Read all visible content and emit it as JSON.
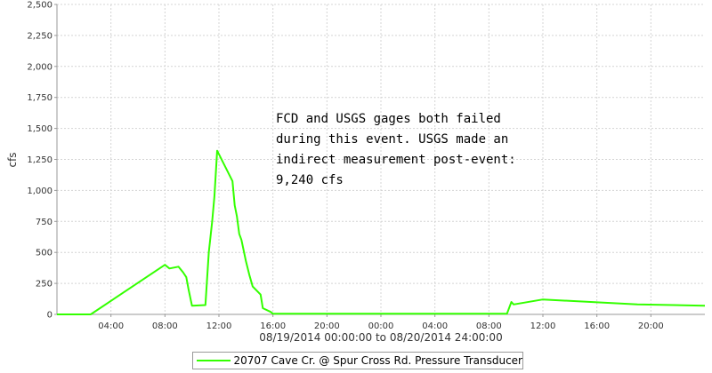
{
  "chart_data": {
    "type": "line",
    "ylabel": "cfs",
    "xlabel": "08/19/2014 00:00:00 to 08/20/2014 24:00:00",
    "xlim": [
      "08/19/2014 00:00",
      "08/20/2014 24:00"
    ],
    "ylim": [
      0,
      2500
    ],
    "yticks": [
      0,
      250,
      500,
      750,
      1000,
      1250,
      1500,
      1750,
      2000,
      2250,
      2500
    ],
    "ytick_labels": [
      "0",
      "250",
      "500",
      "750",
      "1,000",
      "1,250",
      "1,500",
      "1,750",
      "2,000",
      "2,250",
      "2,500"
    ],
    "xticks": [
      "08/19/2014 04:00",
      "08/19/2014 08:00",
      "08/19/2014 12:00",
      "08/19/2014 16:00",
      "08/19/2014 20:00",
      "08/20/2014 00:00",
      "08/20/2014 04:00",
      "08/20/2014 08:00",
      "08/20/2014 12:00",
      "08/20/2014 16:00",
      "08/20/2014 20:00"
    ],
    "xtick_labels": [
      "04:00",
      "08:00",
      "12:00",
      "16:00",
      "20:00",
      "00:00",
      "04:00",
      "08:00",
      "12:00",
      "16:00",
      "20:00"
    ],
    "grid": true,
    "legend_position": "bottom",
    "series": [
      {
        "name": "20707 Cave Cr. @ Spur Cross Rd. Pressure Transducer",
        "color": "#33ff00",
        "x": [
          "08/19/2014 00:00",
          "08/19/2014 02:30",
          "08/19/2014 08:00",
          "08/19/2014 08:20",
          "08/19/2014 09:00",
          "08/19/2014 09:20",
          "08/19/2014 09:35",
          "08/19/2014 09:45",
          "08/19/2014 10:00",
          "08/19/2014 11:00",
          "08/19/2014 11:15",
          "08/19/2014 11:30",
          "08/19/2014 11:40",
          "08/19/2014 11:52",
          "08/19/2014 13:00",
          "08/19/2014 13:10",
          "08/19/2014 13:20",
          "08/19/2014 13:30",
          "08/19/2014 13:40",
          "08/19/2014 14:00",
          "08/19/2014 14:15",
          "08/19/2014 14:30",
          "08/19/2014 15:05",
          "08/19/2014 15:15",
          "08/19/2014 15:50",
          "08/19/2014 16:00",
          "08/20/2014 09:20",
          "08/20/2014 09:40",
          "08/20/2014 09:50",
          "08/20/2014 12:00",
          "08/20/2014 19:00",
          "08/20/2014 24:00"
        ],
        "values": [
          0,
          0,
          400,
          370,
          385,
          340,
          300,
          200,
          70,
          75,
          500,
          750,
          950,
          1320,
          1075,
          880,
          790,
          650,
          600,
          430,
          320,
          225,
          160,
          50,
          20,
          5,
          5,
          100,
          80,
          120,
          80,
          70
        ]
      }
    ],
    "annotations": [
      {
        "lines": [
          "FCD and USGS gages both failed",
          "during this event.  USGS made an",
          "indirect measurement post-event:",
          "9,240 cfs"
        ]
      }
    ]
  }
}
